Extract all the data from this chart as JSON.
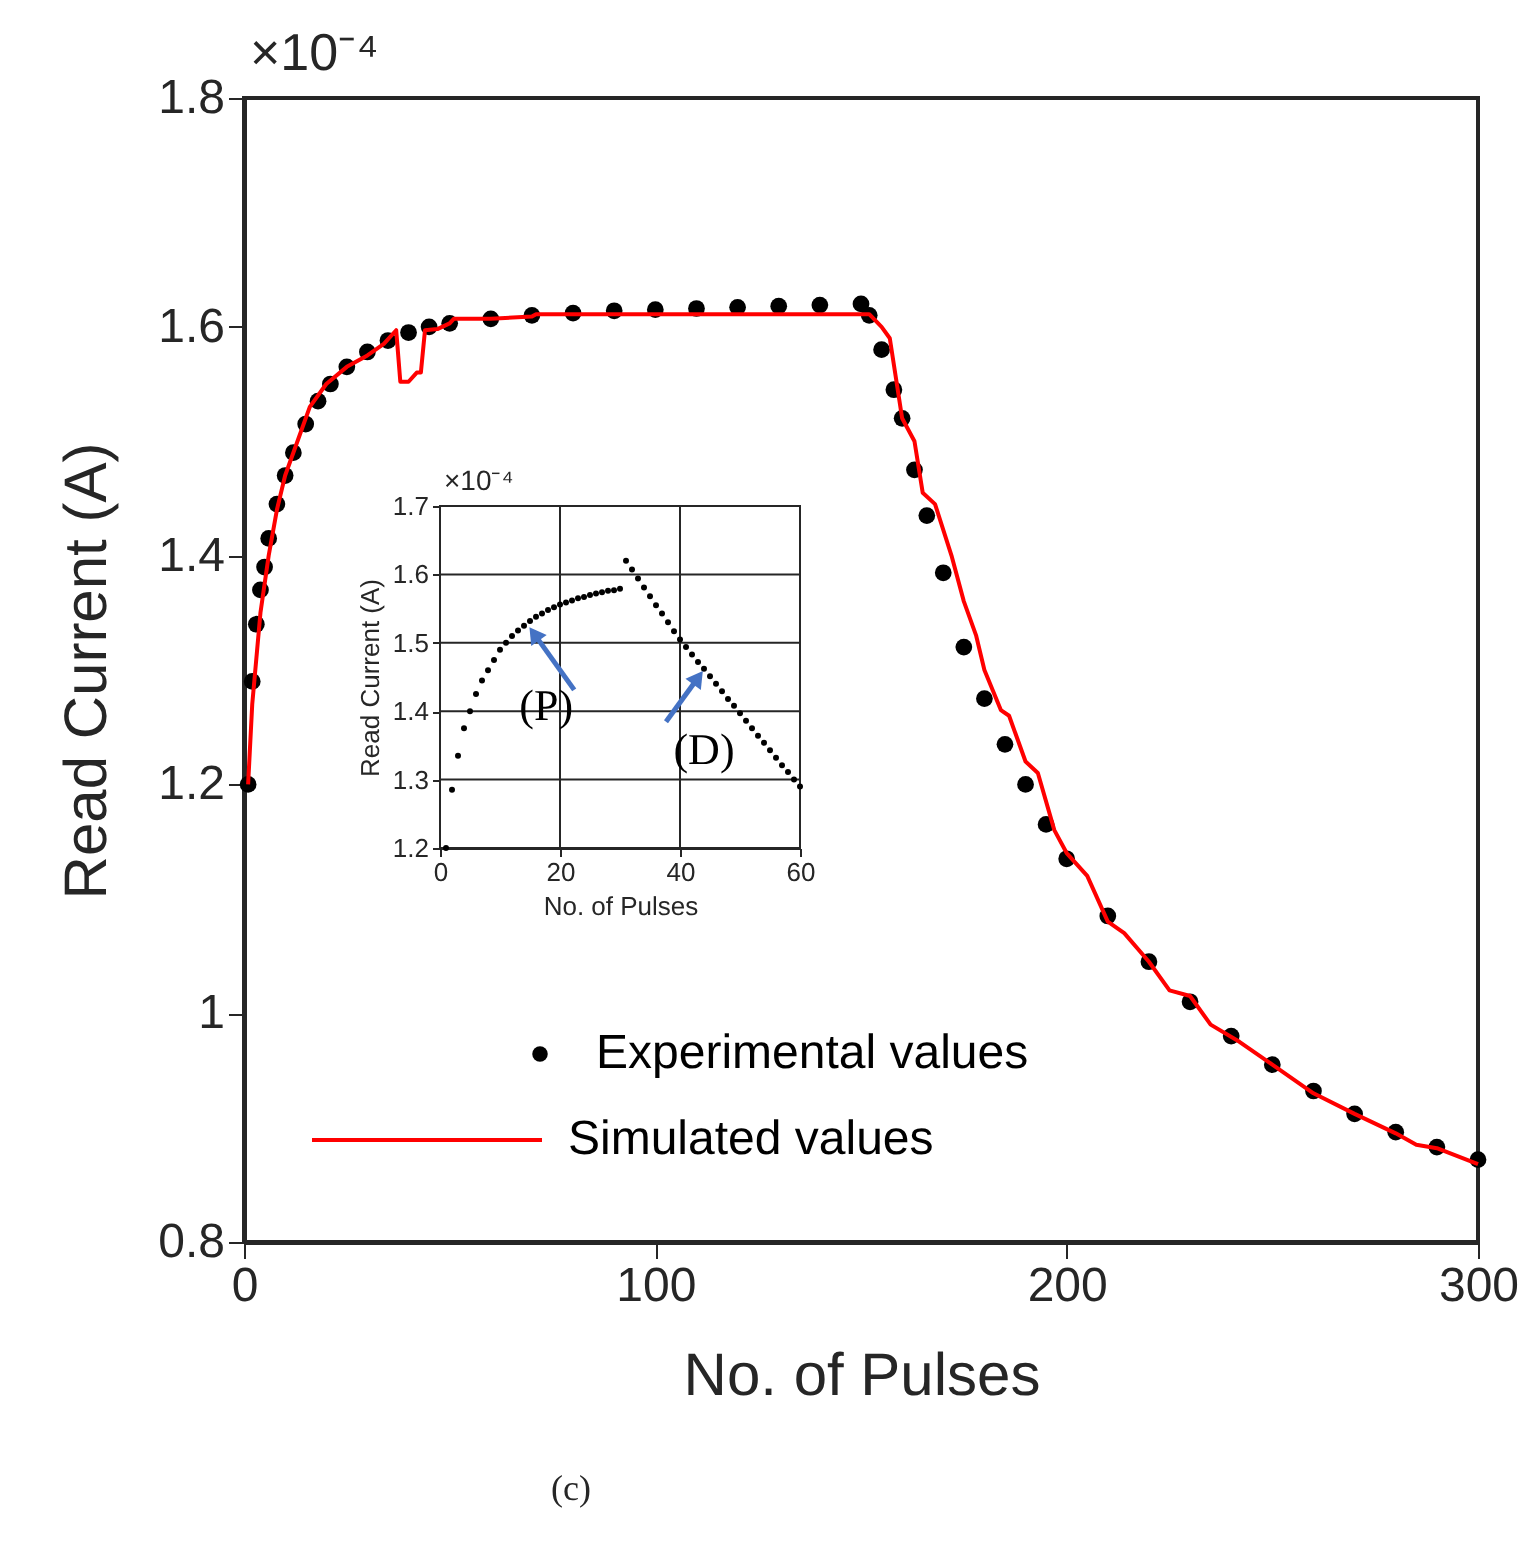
{
  "chart_data": [
    {
      "type": "scatter",
      "xlabel": "No. of Pulses",
      "ylabel": "Read Current (A)",
      "xlim": [
        0,
        300
      ],
      "ylim": [
        0.8,
        1.8
      ],
      "xticks": [
        0,
        100,
        200,
        300
      ],
      "yticks": [
        0.8,
        1,
        1.2,
        1.4,
        1.6,
        1.8
      ],
      "grid": false,
      "legend": "bottom left",
      "annotations": [
        "×10⁻⁴",
        "(c)"
      ],
      "series": [
        {
          "name": "Experimental values",
          "color": "#000000",
          "marker": "circle",
          "x": [
            1,
            2,
            3,
            4,
            5,
            6,
            8,
            10,
            12,
            15,
            18,
            21,
            25,
            30,
            35,
            40,
            45,
            50,
            60,
            70,
            80,
            90,
            100,
            110,
            120,
            130,
            140,
            150,
            152,
            155,
            158,
            160,
            163,
            166,
            170,
            175,
            180,
            185,
            190,
            195,
            200,
            210,
            220,
            230,
            240,
            250,
            260,
            270,
            280,
            290,
            300
          ],
          "values": [
            1.2,
            1.29,
            1.34,
            1.37,
            1.39,
            1.415,
            1.445,
            1.47,
            1.49,
            1.515,
            1.535,
            1.55,
            1.565,
            1.578,
            1.588,
            1.595,
            1.6,
            1.603,
            1.607,
            1.61,
            1.612,
            1.614,
            1.615,
            1.616,
            1.617,
            1.618,
            1.619,
            1.62,
            1.61,
            1.58,
            1.545,
            1.52,
            1.475,
            1.435,
            1.385,
            1.32,
            1.275,
            1.235,
            1.2,
            1.165,
            1.135,
            1.085,
            1.045,
            1.01,
            0.98,
            0.955,
            0.932,
            0.912,
            0.896,
            0.883,
            0.872
          ]
        },
        {
          "name": "Simulated values",
          "type": "line",
          "color": "#ff0000",
          "line_style": "solid",
          "marker": "none",
          "x": [
            1,
            2,
            4,
            6,
            8,
            10,
            13,
            16,
            20,
            25,
            30,
            34,
            37,
            38,
            40,
            42,
            43,
            44,
            47,
            50,
            51,
            60,
            70,
            71,
            152,
            155,
            157,
            160,
            163,
            165,
            168,
            172,
            175,
            178,
            180,
            184,
            186,
            190,
            193,
            197,
            200,
            205,
            210,
            214,
            220,
            225,
            230,
            235,
            242,
            250,
            260,
            270,
            280,
            285,
            290,
            300
          ],
          "values": [
            1.2,
            1.27,
            1.35,
            1.4,
            1.44,
            1.47,
            1.5,
            1.53,
            1.55,
            1.565,
            1.575,
            1.585,
            1.597,
            1.552,
            1.552,
            1.56,
            1.56,
            1.597,
            1.598,
            1.603,
            1.607,
            1.607,
            1.609,
            1.611,
            1.611,
            1.6,
            1.59,
            1.52,
            1.5,
            1.455,
            1.445,
            1.4,
            1.36,
            1.33,
            1.3,
            1.265,
            1.26,
            1.22,
            1.21,
            1.16,
            1.14,
            1.12,
            1.08,
            1.07,
            1.045,
            1.02,
            1.015,
            0.99,
            0.975,
            0.955,
            0.93,
            0.912,
            0.895,
            0.885,
            0.882,
            0.868
          ]
        }
      ]
    },
    {
      "type": "scatter",
      "xlabel": "No. of Pulses",
      "ylabel": "Read Current (A)",
      "xlim": [
        0,
        60
      ],
      "ylim": [
        1.2,
        1.7
      ],
      "xticks": [
        0,
        20,
        40,
        60
      ],
      "yticks": [
        1.2,
        1.3,
        1.4,
        1.5,
        1.6,
        1.7
      ],
      "grid": true,
      "marker": "circle",
      "annotations": [
        "×10⁻⁴",
        {
          "text": "(P)",
          "x": 15.7,
          "y": 1.513
        },
        {
          "text": "(D)",
          "x": 43,
          "y": 1.449
        }
      ],
      "series": [
        {
          "color": "#000000",
          "x": [
            1,
            2,
            3,
            4,
            5,
            6,
            7,
            8,
            9,
            10,
            11,
            12,
            13,
            14,
            15,
            16,
            17,
            18,
            19,
            20,
            21,
            22,
            23,
            24,
            25,
            26,
            27,
            28,
            29,
            30,
            31,
            32,
            33,
            34,
            35,
            36,
            37,
            38,
            39,
            40,
            41,
            42,
            43,
            44,
            45,
            46,
            47,
            48,
            49,
            50,
            51,
            52,
            53,
            54,
            55,
            56,
            57,
            58,
            59,
            60
          ],
          "values": [
            1.2,
            1.285,
            1.335,
            1.375,
            1.4,
            1.425,
            1.445,
            1.46,
            1.475,
            1.49,
            1.5,
            1.51,
            1.518,
            1.525,
            1.532,
            1.538,
            1.543,
            1.548,
            1.552,
            1.556,
            1.559,
            1.562,
            1.565,
            1.567,
            1.57,
            1.572,
            1.574,
            1.576,
            1.577,
            1.579,
            1.62,
            1.607,
            1.594,
            1.581,
            1.568,
            1.555,
            1.543,
            1.53,
            1.517,
            1.505,
            1.494,
            1.483,
            1.472,
            1.462,
            1.451,
            1.44,
            1.429,
            1.418,
            1.408,
            1.397,
            1.386,
            1.375,
            1.364,
            1.354,
            1.343,
            1.332,
            1.321,
            1.311,
            1.3,
            1.29
          ]
        }
      ]
    }
  ]
}
